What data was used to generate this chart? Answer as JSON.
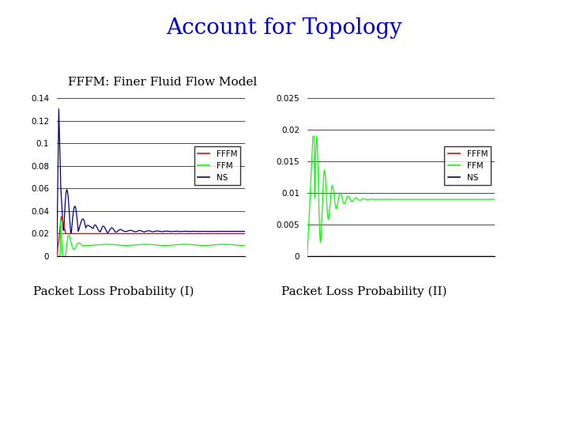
{
  "title": "Account for Topology",
  "subtitle": "FFFM: Finer Fluid Flow Model",
  "label1": "Packet Loss Probability (I)",
  "label2": "Packet Loss Probability (II)",
  "title_color": "#0000CC",
  "subtitle_color": "#000000",
  "plot1": {
    "ylim": [
      0,
      0.14
    ],
    "yticks": [
      0,
      0.02,
      0.04,
      0.06,
      0.08,
      0.1,
      0.12,
      0.14
    ],
    "yticklabels": [
      "0",
      "0.02",
      "0.04",
      "0.06",
      "0.08",
      "0.1",
      "0.12",
      "0.14"
    ]
  },
  "plot2": {
    "ylim": [
      0,
      0.025
    ],
    "yticks": [
      0,
      0.005,
      0.01,
      0.015,
      0.02,
      0.025
    ],
    "yticklabels": [
      "0",
      "0.005",
      "0.01",
      "0.015",
      "0.02",
      "0.025"
    ]
  },
  "legend_labels": [
    "FFFM",
    "FFM",
    "NS"
  ],
  "legend_colors": [
    "red",
    "lime",
    "navy"
  ],
  "background_color": "#ffffff",
  "title_fontsize": 20,
  "subtitle_fontsize": 11,
  "label_fontsize": 11,
  "tick_fontsize": 7.5
}
